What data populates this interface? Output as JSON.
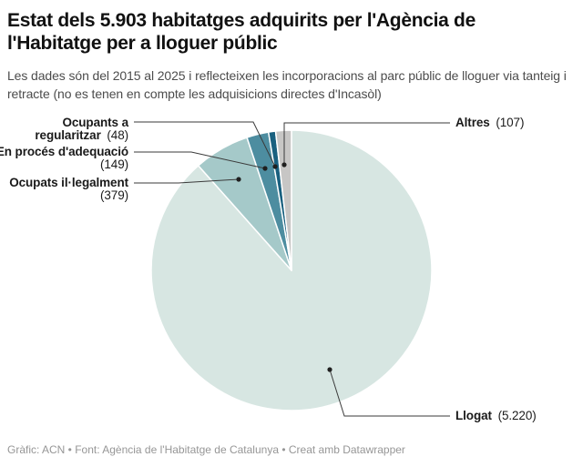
{
  "header": {
    "title": "Estat dels 5.903 habitatges adquirits per l'Agència de l'Habitatge per a lloguer públic",
    "subtitle": "Les dades són del 2015 al 2025 i reflecteixen les incorporacions al parc públic de lloguer via tanteig i retracte (no es tenen en compte les adquisicions directes d'Incasòl)"
  },
  "chart_data": {
    "type": "pie",
    "title": "Estat dels 5.903 habitatges adquirits per l'Agència de l'Habitatge per a lloguer públic",
    "total": 5903,
    "unit": "habitatges",
    "start_angle_deg": 0,
    "direction": "clockwise",
    "slices": [
      {
        "label": "Llogat",
        "value": 5220,
        "display_value": "5.220",
        "color": "#d7e6e2"
      },
      {
        "label": "Ocupats il·legalment",
        "value": 379,
        "display_value": "379",
        "color": "#a5c9c9"
      },
      {
        "label": "En procés d'adequació",
        "value": 149,
        "display_value": "149",
        "color": "#4d8da0"
      },
      {
        "label": "Ocupants a regularitzar",
        "value": 48,
        "display_value": "48",
        "color": "#19607f"
      },
      {
        "label": "Altres",
        "value": 107,
        "display_value": "107",
        "color": "#c7c6c5"
      }
    ],
    "colors": {
      "connector_line": "#3a3a3a",
      "connector_dot": "#1f1f1f",
      "slice_separator": "#ffffff"
    }
  },
  "callouts": {
    "ocupants_regularitzar": {
      "line1_bold": "Ocupants a",
      "line2_bold": "regularitzar",
      "line2_value": "(48)"
    },
    "en_proces": {
      "line1_bold": "En procés d'adequació",
      "line2_value": "(149)"
    },
    "ocupats_illegalment": {
      "line1_bold": "Ocupats il·legalment",
      "line2_value": "(379)"
    },
    "altres": {
      "bold": "Altres",
      "value": "(107)"
    },
    "llogat": {
      "bold": "Llogat",
      "value": "(5.220)"
    }
  },
  "footer": {
    "text": "Gràfic: ACN • Font: Agència de l'Habitatge de Catalunya • Creat amb Datawrapper"
  }
}
